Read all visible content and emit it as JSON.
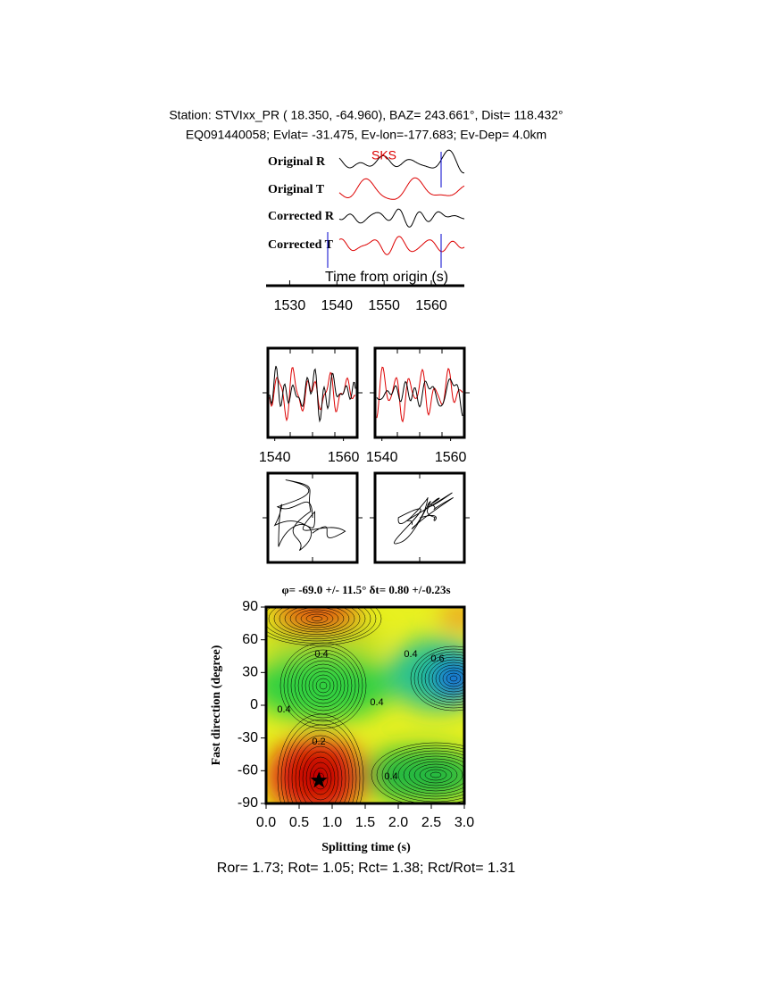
{
  "header": {
    "line1": "Station: STVIxx_PR (  18.350,  -64.960), BAZ=  243.661°, Dist=  118.432°",
    "line2": "EQ091440058; Evlat= -31.475, Ev-lon=-177.683; Ev-Dep=  4.0km"
  },
  "chart_data": [
    {
      "type": "waveform",
      "labels": [
        "Original R",
        "Original T",
        "Corrected R",
        "Corrected T"
      ],
      "phase": "SKS",
      "xlabel": "Time from origin (s)",
      "xlim": [
        1525,
        1567
      ],
      "xticks": [
        1530,
        1540,
        1550,
        1560
      ]
    },
    {
      "type": "window",
      "xlim": [
        1538,
        1564
      ],
      "xticks": [
        1540,
        1560
      ]
    },
    {
      "type": "window",
      "xlim": [
        1538,
        1564
      ],
      "xticks": [
        1540,
        1560
      ]
    },
    {
      "type": "particle-motion"
    },
    {
      "type": "particle-motion"
    },
    {
      "type": "contour",
      "title": "φ= -69.0 +/- 11.5° δt= 0.80 +/-0.23s",
      "xlabel": "Splitting time (s)",
      "ylabel": "Fast direction (degree)",
      "xlim": [
        0,
        3
      ],
      "ylim": [
        -90,
        90
      ],
      "xticks": [
        {
          "value": 0,
          "label": "0.0"
        },
        {
          "value": 0.5,
          "label": "0.5"
        },
        {
          "value": 1,
          "label": "1.0"
        },
        {
          "value": 1.5,
          "label": "1.5"
        },
        {
          "value": 2,
          "label": "2.0"
        },
        {
          "value": 2.5,
          "label": "2.5"
        },
        {
          "value": 3,
          "label": "3.0"
        }
      ],
      "yticks": [
        90,
        60,
        30,
        0,
        -30,
        -60,
        -90
      ],
      "best": {
        "x": 0.8,
        "y": -69
      },
      "contour_labels": [
        "0.4",
        "0.4",
        "0.6",
        "0.4",
        "0.4",
        "0.2",
        "0.4"
      ]
    }
  ],
  "footer": "Ror= 1.73; Rot= 1.05; Rct= 1.38; Rct/Rot= 1.31"
}
